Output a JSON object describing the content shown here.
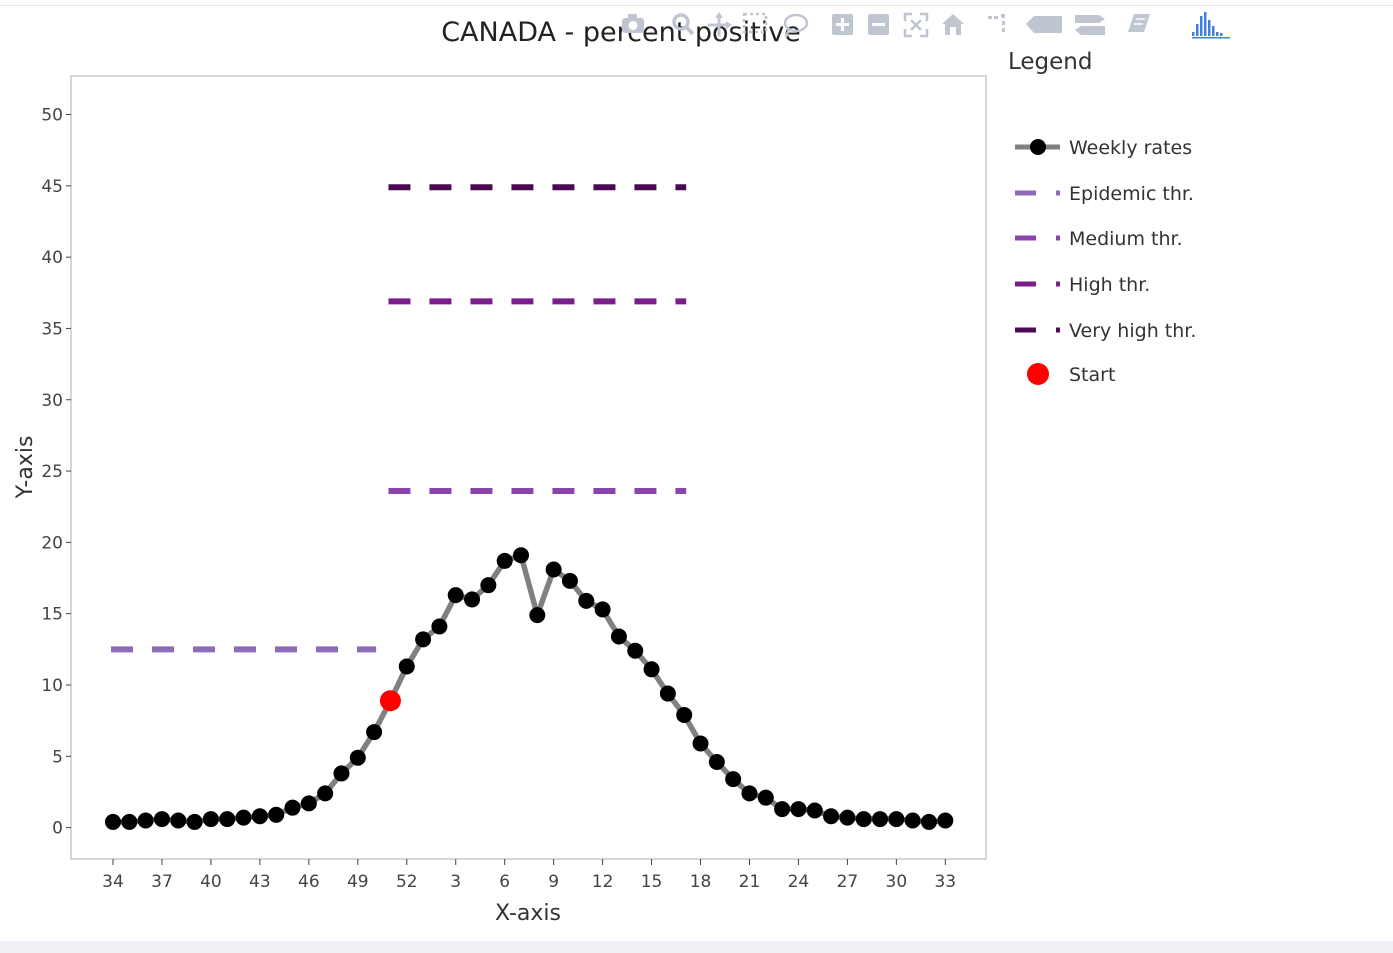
{
  "chart_data": {
    "type": "line",
    "title": "CANADA - percent positive",
    "xlabel": "X-axis",
    "ylabel": "Y-axis",
    "x_categories": [
      34,
      35,
      36,
      37,
      38,
      39,
      40,
      41,
      42,
      43,
      44,
      45,
      46,
      47,
      48,
      49,
      50,
      51,
      52,
      1,
      2,
      3,
      4,
      5,
      6,
      7,
      8,
      9,
      10,
      11,
      12,
      13,
      14,
      15,
      16,
      17,
      18,
      19,
      20,
      21,
      22,
      23,
      24,
      25,
      26,
      27,
      28,
      29,
      30,
      31,
      32,
      33
    ],
    "x_tick_labels": [
      "34",
      "37",
      "40",
      "43",
      "46",
      "49",
      "52",
      "3",
      "6",
      "9",
      "12",
      "15",
      "18",
      "21",
      "24",
      "27",
      "30",
      "33"
    ],
    "y_ticks": [
      0,
      5,
      10,
      15,
      20,
      25,
      30,
      35,
      40,
      45,
      50
    ],
    "y_tick_labels": [
      "0",
      "5",
      "10",
      "15",
      "20",
      "25",
      "30",
      "35",
      "40",
      "45",
      "50"
    ],
    "ylim": [
      -2.2,
      52.7
    ],
    "series": [
      {
        "name": "Weekly rates",
        "color": "#808080",
        "marker_color": "#000000",
        "values": [
          0.4,
          0.4,
          0.5,
          0.6,
          0.5,
          0.4,
          0.6,
          0.6,
          0.7,
          0.8,
          0.9,
          1.4,
          1.7,
          2.4,
          3.8,
          4.9,
          6.7,
          8.9,
          11.3,
          13.2,
          14.1,
          16.3,
          16.0,
          17.0,
          18.7,
          19.1,
          14.9,
          18.1,
          17.3,
          15.9,
          15.3,
          13.4,
          12.4,
          11.1,
          9.4,
          7.9,
          5.9,
          4.6,
          3.4,
          2.4,
          2.1,
          1.3,
          1.3,
          1.2,
          0.8,
          0.7,
          0.6,
          0.6,
          0.6,
          0.5,
          0.4,
          0.5
        ]
      }
    ],
    "thresholds": [
      {
        "name": "Epidemic thr.",
        "value": 12.5,
        "color": "#8e6bb8",
        "x_from": 34,
        "x_to": 50
      },
      {
        "name": "Medium thr.",
        "value": 23.6,
        "color": "#8a44ac",
        "x_from": 51,
        "x_to": 17
      },
      {
        "name": "High thr.",
        "value": 36.9,
        "color": "#7a1e8c",
        "x_from": 51,
        "x_to": 17
      },
      {
        "name": "Very high thr.",
        "value": 44.9,
        "color": "#4a0a52",
        "x_from": 51,
        "x_to": 17
      }
    ],
    "start_marker": {
      "name": "Start",
      "x": 51,
      "y": 8.9,
      "color": "#ff0000"
    },
    "legend": {
      "title": "Legend",
      "position": "right",
      "entries": [
        "Weekly rates",
        "Epidemic thr.",
        "Medium thr.",
        "High thr.",
        "Very high thr.",
        "Start"
      ]
    },
    "grid": false
  },
  "modebar": {
    "buttons": [
      "camera-icon",
      "zoom-icon",
      "pan-icon",
      "box-select-icon",
      "lasso-icon",
      "zoom-in-icon",
      "zoom-out-icon",
      "autoscale-icon",
      "home-icon",
      "spike-lines-icon",
      "hover-closest-icon",
      "hover-compare-icon",
      "edit-icon",
      "plotly-logo-icon"
    ],
    "color": "#bfc6d1",
    "logo_color": "#3f7fdb"
  }
}
